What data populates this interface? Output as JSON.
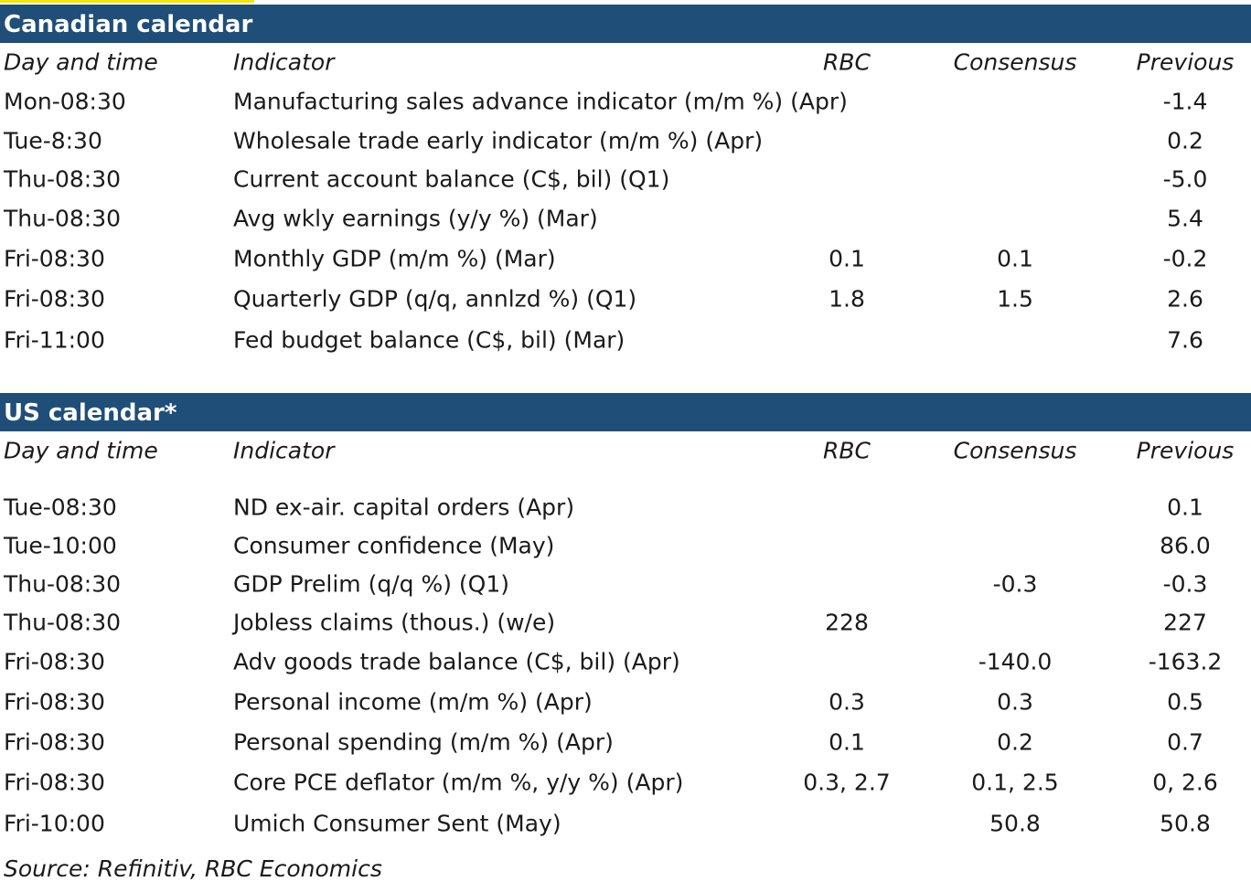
{
  "columns": {
    "day": "Day and time",
    "indicator": "Indicator",
    "rbc": "RBC",
    "consensus": "Consensus",
    "previous": "Previous"
  },
  "canadian": {
    "title": "Canadian calendar",
    "rows": [
      {
        "day": "Mon-08:30",
        "indicator": "Manufacturing sales advance indicator (m/m %) (Apr)",
        "rbc": "",
        "consensus": "",
        "previous": "-1.4"
      },
      {
        "day": "Tue-8:30",
        "indicator": "Wholesale trade early indicator (m/m %) (Apr)",
        "rbc": "",
        "consensus": "",
        "previous": "0.2"
      },
      {
        "day": "Thu-08:30",
        "indicator": "Current account balance (C$, bil) (Q1)",
        "rbc": "",
        "consensus": "",
        "previous": "-5.0"
      },
      {
        "day": "Thu-08:30",
        "indicator": "Avg wkly earnings (y/y %) (Mar)",
        "rbc": "",
        "consensus": "",
        "previous": "5.4"
      },
      {
        "day": "Fri-08:30",
        "indicator": "Monthly GDP (m/m %) (Mar)",
        "rbc": "0.1",
        "consensus": "0.1",
        "previous": "-0.2"
      },
      {
        "day": "Fri-08:30",
        "indicator": "Quarterly GDP (q/q, annlzd %) (Q1)",
        "rbc": "1.8",
        "consensus": "1.5",
        "previous": "2.6"
      },
      {
        "day": "Fri-11:00",
        "indicator": "Fed budget balance (C$, bil) (Mar)",
        "rbc": "",
        "consensus": "",
        "previous": "7.6"
      }
    ]
  },
  "us": {
    "title": "US calendar*",
    "rows": [
      {
        "day": "Tue-08:30",
        "indicator": "ND ex-air. capital orders (Apr)",
        "rbc": "",
        "consensus": "",
        "previous": "0.1"
      },
      {
        "day": "Tue-10:00",
        "indicator": "Consumer confidence (May)",
        "rbc": "",
        "consensus": "",
        "previous": "86.0"
      },
      {
        "day": "Thu-08:30",
        "indicator": "GDP Prelim (q/q %) (Q1)",
        "rbc": "",
        "consensus": "-0.3",
        "previous": "-0.3"
      },
      {
        "day": "Thu-08:30",
        "indicator": "Jobless claims (thous.) (w/e)",
        "rbc": "228",
        "consensus": "",
        "previous": "227"
      },
      {
        "day": "Fri-08:30",
        "indicator": "Adv goods trade balance (C$, bil) (Apr)",
        "rbc": "",
        "consensus": "-140.0",
        "previous": "-163.2"
      },
      {
        "day": "Fri-08:30",
        "indicator": "Personal income (m/m %) (Apr)",
        "rbc": "0.3",
        "consensus": "0.3",
        "previous": "0.5"
      },
      {
        "day": "Fri-08:30",
        "indicator": "Personal spending (m/m %) (Apr)",
        "rbc": "0.1",
        "consensus": "0.2",
        "previous": "0.7"
      },
      {
        "day": "Fri-08:30",
        "indicator": "Core PCE deflator (m/m %, y/y %) (Apr)",
        "rbc": "0.3, 2.7",
        "consensus": "0.1, 2.5",
        "previous": "0, 2.6"
      },
      {
        "day": "Fri-10:00",
        "indicator": "Umich Consumer Sent (May)",
        "rbc": "",
        "consensus": "50.8",
        "previous": "50.8"
      }
    ]
  },
  "source": "Source: Refinitiv,  RBC Economics"
}
